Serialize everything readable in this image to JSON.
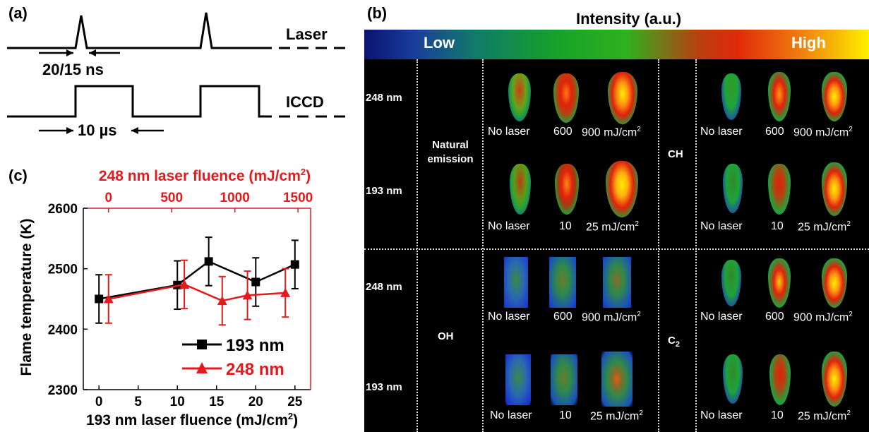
{
  "panel_labels": {
    "a": "(a)",
    "b": "(b)",
    "c": "(c)"
  },
  "timing": {
    "laser_label": "Laser",
    "iccd_label": "ICCD",
    "pulse_width": "20/15 ns",
    "gate_width": "10 µs"
  },
  "imaging": {
    "intensity_title": "Intensity (a.u.)",
    "low": "Low",
    "high": "High",
    "rows": [
      "248 nm",
      "193 nm",
      "248 nm",
      "193 nm"
    ],
    "species": {
      "natural_line1": "Natural",
      "natural_line2": "emission",
      "ch": "CH",
      "oh": "OH",
      "c2_base": "C",
      "c2_sub": "2"
    },
    "labels_248": [
      "No laser",
      "600",
      "900 mJ/cm",
      "2"
    ],
    "labels_193": [
      "No laser",
      "10",
      "25 mJ/cm",
      "2"
    ],
    "colors": {
      "blue": "#1a2fd0",
      "green": "#1ea33a",
      "red": "#e0220d",
      "yellow": "#ffee00"
    }
  },
  "chart_data": {
    "type": "line",
    "ylabel": "Flame temperature (K)",
    "xlabel_base": "193 nm laser fluence (mJ/cm",
    "xlabel_sup": "2",
    "xlabel_close": ")",
    "x2label_base": "248 nm laser fluence (mJ/cm",
    "x2label_sup": "2",
    "x2label_close": ")",
    "xlim": [
      -2,
      27
    ],
    "ylim": [
      2300,
      2600
    ],
    "x2lim": [
      -200,
      1600
    ],
    "xticks": [
      0,
      5,
      10,
      15,
      20,
      25
    ],
    "x2ticks": [
      0,
      500,
      1000,
      1500
    ],
    "yticks": [
      2300,
      2400,
      2500,
      2600
    ],
    "series": [
      {
        "name": "193 nm",
        "axis": "bottom",
        "color": "#000000",
        "marker": "square",
        "x": [
          0,
          10,
          14,
          20,
          25
        ],
        "y": [
          2450,
          2473,
          2512,
          2478,
          2507
        ],
        "err": [
          40,
          40,
          40,
          40,
          40
        ]
      },
      {
        "name": "248 nm",
        "axis": "top",
        "color": "#e41a1c",
        "marker": "triangle",
        "x": [
          0,
          600,
          900,
          1100,
          1400
        ],
        "y": [
          2450,
          2474,
          2447,
          2456,
          2460
        ],
        "err": [
          40,
          40,
          40,
          40,
          40
        ]
      }
    ],
    "legend_position": "bottom-right",
    "grid": false
  }
}
